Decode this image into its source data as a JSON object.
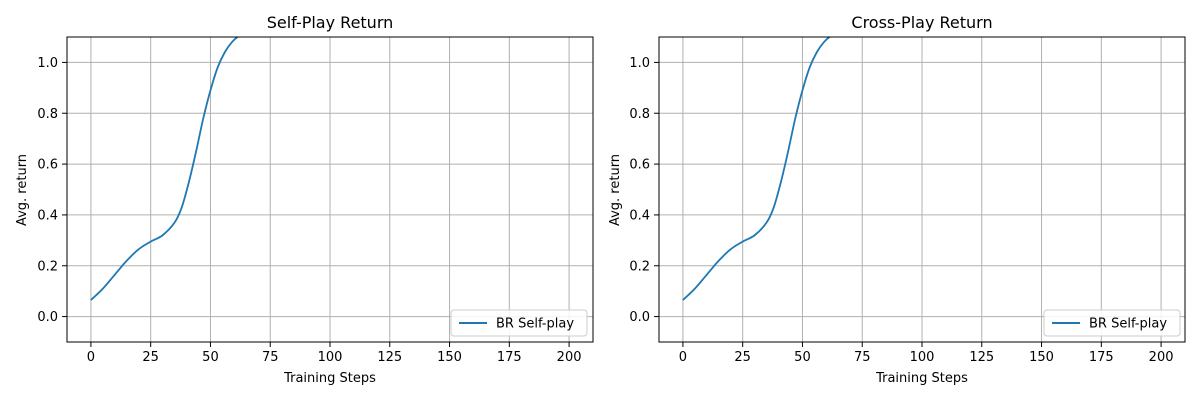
{
  "chart_data": [
    {
      "type": "line",
      "title": "Self-Play Return",
      "xlabel": "Training Steps",
      "ylabel": "Avg. return",
      "xlim": [
        -10,
        210
      ],
      "ylim": [
        -0.1,
        1.1
      ],
      "xticks": [
        0,
        25,
        50,
        75,
        100,
        125,
        150,
        175,
        200
      ],
      "yticks": [
        0.0,
        0.2,
        0.4,
        0.6,
        0.8,
        1.0
      ],
      "xtick_labels": [
        "0",
        "25",
        "50",
        "75",
        "100",
        "125",
        "150",
        "175",
        "200"
      ],
      "ytick_labels": [
        "0.0",
        "0.2",
        "0.4",
        "0.6",
        "0.8",
        "1.0"
      ],
      "grid": true,
      "legend_position": "lower-right",
      "series": [
        {
          "name": "BR Self-play",
          "color": "#1f77b4",
          "x": [
            0,
            5,
            10,
            15,
            20,
            25,
            30,
            35,
            38,
            41,
            44,
            47,
            50,
            53,
            56,
            59,
            62,
            65
          ],
          "y": [
            0.065,
            0.11,
            0.165,
            0.22,
            0.265,
            0.295,
            0.32,
            0.37,
            0.43,
            0.53,
            0.65,
            0.78,
            0.89,
            0.98,
            1.04,
            1.08,
            1.105,
            1.12
          ]
        }
      ]
    },
    {
      "type": "line",
      "title": "Cross-Play Return",
      "xlabel": "Training Steps",
      "ylabel": "Avg. return",
      "xlim": [
        -10,
        210
      ],
      "ylim": [
        -0.1,
        1.1
      ],
      "xticks": [
        0,
        25,
        50,
        75,
        100,
        125,
        150,
        175,
        200
      ],
      "yticks": [
        0.0,
        0.2,
        0.4,
        0.6,
        0.8,
        1.0
      ],
      "xtick_labels": [
        "0",
        "25",
        "50",
        "75",
        "100",
        "125",
        "150",
        "175",
        "200"
      ],
      "ytick_labels": [
        "0.0",
        "0.2",
        "0.4",
        "0.6",
        "0.8",
        "1.0"
      ],
      "grid": true,
      "legend_position": "lower-right",
      "series": [
        {
          "name": "BR Self-play",
          "color": "#1f77b4",
          "x": [
            0,
            5,
            10,
            15,
            20,
            25,
            30,
            35,
            38,
            41,
            44,
            47,
            50,
            53,
            56,
            59,
            62,
            65
          ],
          "y": [
            0.065,
            0.11,
            0.165,
            0.22,
            0.265,
            0.295,
            0.32,
            0.37,
            0.43,
            0.53,
            0.65,
            0.78,
            0.89,
            0.98,
            1.04,
            1.08,
            1.105,
            1.12
          ]
        }
      ]
    }
  ]
}
